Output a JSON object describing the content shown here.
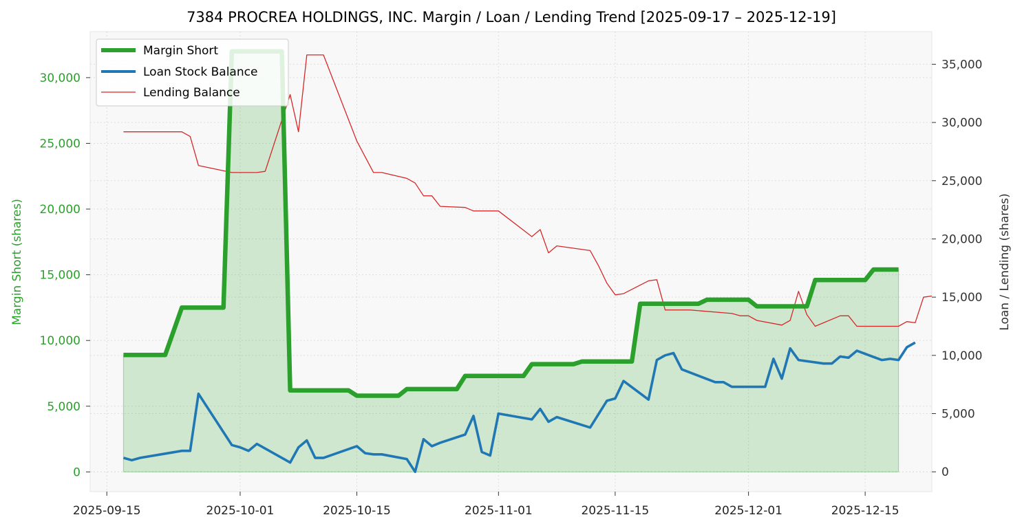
{
  "chart_data": {
    "type": "line",
    "title": "7384 PROCREA HOLDINGS, INC. Margin / Loan / Lending Trend [2025-09-17 – 2025-12-19]",
    "xlabel": "",
    "ylabel_left": "Margin Short (shares)",
    "ylabel_right": "Loan / Lending (shares)",
    "x_ticks": [
      "2025-09-15",
      "2025-10-01",
      "2025-10-15",
      "2025-11-01",
      "2025-11-15",
      "2025-12-01",
      "2025-12-15"
    ],
    "y_left_ticks": [
      "0",
      "5,000",
      "10,000",
      "15,000",
      "20,000",
      "25,000",
      "30,000"
    ],
    "y_right_ticks": [
      "0",
      "5,000",
      "10,000",
      "15,000",
      "20,000",
      "25,000",
      "30,000",
      "35,000"
    ],
    "y_left_range": [
      -1500,
      33500
    ],
    "y_right_range": [
      -1700,
      37800
    ],
    "x_range": [
      "2025-09-13",
      "2025-12-23"
    ],
    "grid": true,
    "legend_position": "top-left",
    "colors": {
      "margin": "#2ca02c",
      "loan": "#1f77b4",
      "lending": "#d62728",
      "fill": "#2ca02c"
    },
    "series": [
      {
        "name": "Margin Short",
        "axis": "left",
        "points": [
          [
            "2025-09-17",
            8900
          ],
          [
            "2025-09-22",
            8900
          ],
          [
            "2025-09-24",
            12500
          ],
          [
            "2025-09-29",
            12500
          ],
          [
            "2025-09-30",
            32000
          ],
          [
            "2025-10-06",
            32000
          ],
          [
            "2025-10-07",
            6200
          ],
          [
            "2025-10-14",
            6200
          ],
          [
            "2025-10-15",
            5800
          ],
          [
            "2025-10-20",
            5800
          ],
          [
            "2025-10-21",
            6300
          ],
          [
            "2025-10-27",
            6300
          ],
          [
            "2025-10-28",
            7300
          ],
          [
            "2025-11-04",
            7300
          ],
          [
            "2025-11-05",
            8200
          ],
          [
            "2025-11-10",
            8200
          ],
          [
            "2025-11-11",
            8400
          ],
          [
            "2025-11-17",
            8400
          ],
          [
            "2025-11-18",
            12800
          ],
          [
            "2025-11-25",
            12800
          ],
          [
            "2025-11-26",
            13100
          ],
          [
            "2025-12-01",
            13100
          ],
          [
            "2025-12-02",
            12600
          ],
          [
            "2025-12-08",
            12600
          ],
          [
            "2025-12-09",
            14600
          ],
          [
            "2025-12-15",
            14600
          ],
          [
            "2025-12-16",
            15400
          ],
          [
            "2025-12-19",
            15400
          ]
        ]
      },
      {
        "name": "Loan Stock Balance",
        "axis": "right",
        "points": [
          [
            "2025-09-17",
            1200
          ],
          [
            "2025-09-18",
            1000
          ],
          [
            "2025-09-19",
            1200
          ],
          [
            "2025-09-24",
            1800
          ],
          [
            "2025-09-25",
            1800
          ],
          [
            "2025-09-26",
            6700
          ],
          [
            "2025-09-30",
            2300
          ],
          [
            "2025-10-01",
            2100
          ],
          [
            "2025-10-02",
            1800
          ],
          [
            "2025-10-03",
            2400
          ],
          [
            "2025-10-04",
            2000
          ],
          [
            "2025-10-07",
            800
          ],
          [
            "2025-10-08",
            2100
          ],
          [
            "2025-10-09",
            2700
          ],
          [
            "2025-10-10",
            1200
          ],
          [
            "2025-10-11",
            1200
          ],
          [
            "2025-10-15",
            2200
          ],
          [
            "2025-10-16",
            1600
          ],
          [
            "2025-10-17",
            1500
          ],
          [
            "2025-10-18",
            1500
          ],
          [
            "2025-10-21",
            1100
          ],
          [
            "2025-10-22",
            0
          ],
          [
            "2025-10-23",
            2800
          ],
          [
            "2025-10-24",
            2200
          ],
          [
            "2025-10-25",
            2500
          ],
          [
            "2025-10-28",
            3200
          ],
          [
            "2025-10-29",
            4800
          ],
          [
            "2025-10-30",
            1700
          ],
          [
            "2025-10-31",
            1400
          ],
          [
            "2025-11-01",
            5000
          ],
          [
            "2025-11-05",
            4500
          ],
          [
            "2025-11-06",
            5400
          ],
          [
            "2025-11-07",
            4300
          ],
          [
            "2025-11-08",
            4700
          ],
          [
            "2025-11-12",
            3800
          ],
          [
            "2025-11-14",
            6100
          ],
          [
            "2025-11-15",
            6300
          ],
          [
            "2025-11-16",
            7800
          ],
          [
            "2025-11-19",
            6200
          ],
          [
            "2025-11-20",
            9600
          ],
          [
            "2025-11-21",
            10000
          ],
          [
            "2025-11-22",
            10200
          ],
          [
            "2025-11-23",
            8800
          ],
          [
            "2025-11-27",
            7700
          ],
          [
            "2025-11-28",
            7700
          ],
          [
            "2025-11-29",
            7300
          ],
          [
            "2025-12-03",
            7300
          ],
          [
            "2025-12-04",
            9700
          ],
          [
            "2025-12-05",
            8000
          ],
          [
            "2025-12-06",
            10600
          ],
          [
            "2025-12-07",
            9600
          ],
          [
            "2025-12-10",
            9300
          ],
          [
            "2025-12-11",
            9300
          ],
          [
            "2025-12-12",
            9900
          ],
          [
            "2025-12-13",
            9800
          ],
          [
            "2025-12-14",
            10400
          ],
          [
            "2025-12-17",
            9600
          ],
          [
            "2025-12-18",
            9700
          ],
          [
            "2025-12-19",
            9600
          ],
          [
            "2025-12-20",
            10700
          ],
          [
            "2025-12-21",
            11100
          ]
        ]
      },
      {
        "name": "Lending Balance",
        "axis": "right",
        "points": [
          [
            "2025-09-17",
            29200
          ],
          [
            "2025-09-24",
            29200
          ],
          [
            "2025-09-25",
            28800
          ],
          [
            "2025-09-26",
            26300
          ],
          [
            "2025-09-30",
            25700
          ],
          [
            "2025-10-03",
            25700
          ],
          [
            "2025-10-04",
            25800
          ],
          [
            "2025-10-07",
            32400
          ],
          [
            "2025-10-08",
            29200
          ],
          [
            "2025-10-09",
            35800
          ],
          [
            "2025-10-11",
            35800
          ],
          [
            "2025-10-15",
            28400
          ],
          [
            "2025-10-17",
            25700
          ],
          [
            "2025-10-18",
            25700
          ],
          [
            "2025-10-21",
            25200
          ],
          [
            "2025-10-22",
            24800
          ],
          [
            "2025-10-23",
            23700
          ],
          [
            "2025-10-24",
            23700
          ],
          [
            "2025-10-25",
            22800
          ],
          [
            "2025-10-28",
            22700
          ],
          [
            "2025-10-29",
            22400
          ],
          [
            "2025-11-01",
            22400
          ],
          [
            "2025-11-05",
            20200
          ],
          [
            "2025-11-06",
            20800
          ],
          [
            "2025-11-07",
            18800
          ],
          [
            "2025-11-08",
            19400
          ],
          [
            "2025-11-12",
            19000
          ],
          [
            "2025-11-13",
            17700
          ],
          [
            "2025-11-14",
            16200
          ],
          [
            "2025-11-15",
            15200
          ],
          [
            "2025-11-16",
            15300
          ],
          [
            "2025-11-19",
            16400
          ],
          [
            "2025-11-20",
            16500
          ],
          [
            "2025-11-21",
            13900
          ],
          [
            "2025-11-24",
            13900
          ],
          [
            "2025-11-29",
            13600
          ],
          [
            "2025-11-30",
            13400
          ],
          [
            "2025-12-01",
            13400
          ],
          [
            "2025-12-02",
            13000
          ],
          [
            "2025-12-05",
            12600
          ],
          [
            "2025-12-06",
            13000
          ],
          [
            "2025-12-07",
            15500
          ],
          [
            "2025-12-08",
            13500
          ],
          [
            "2025-12-09",
            12500
          ],
          [
            "2025-12-12",
            13400
          ],
          [
            "2025-12-13",
            13400
          ],
          [
            "2025-12-14",
            12500
          ],
          [
            "2025-12-19",
            12500
          ],
          [
            "2025-12-20",
            12900
          ],
          [
            "2025-12-21",
            12800
          ],
          [
            "2025-12-22",
            15000
          ],
          [
            "2025-12-23",
            15100
          ]
        ]
      }
    ]
  }
}
